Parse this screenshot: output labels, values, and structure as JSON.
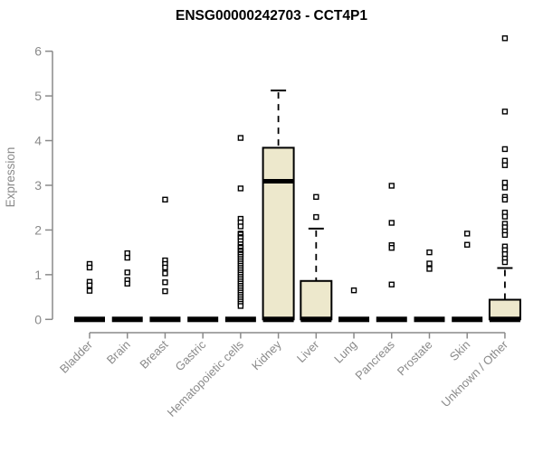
{
  "title": "ENSG00000242703 - CCT4P1",
  "chart_data": {
    "type": "boxplot",
    "title": "ENSG00000242703 - CCT4P1",
    "xlabel": "",
    "ylabel": "Expression",
    "ylim": [
      0,
      6.3
    ],
    "yticks": [
      0,
      1,
      2,
      3,
      4,
      5,
      6
    ],
    "grid": false,
    "legend": "none",
    "colors": {
      "box_fill": "#ede8cc",
      "box_border": "#000000",
      "outlier": "#000000",
      "axis": "#8a8a8a",
      "tick_label": "#8a8a8a",
      "title": "#000000"
    },
    "categories": [
      "Bladder",
      "Brain",
      "Breast",
      "Gastric",
      "Hematopoietic cells",
      "Kidney",
      "Liver",
      "Lung",
      "Pancreas",
      "Prostate",
      "Skin",
      "Unknown / Other"
    ],
    "boxes": [
      {
        "category": "Bladder",
        "q1": 0,
        "median": 0,
        "q3": 0,
        "whisker_low": 0,
        "whisker_high": 0,
        "outliers": [
          1.24,
          1.16,
          0.84,
          0.76,
          0.64
        ]
      },
      {
        "category": "Brain",
        "q1": 0,
        "median": 0,
        "q3": 0,
        "whisker_low": 0,
        "whisker_high": 0,
        "outliers": [
          1.48,
          1.38,
          1.05,
          0.88,
          0.8
        ]
      },
      {
        "category": "Breast",
        "q1": 0,
        "median": 0,
        "q3": 0,
        "whisker_low": 0,
        "whisker_high": 0,
        "outliers": [
          2.68,
          1.32,
          1.24,
          1.16,
          1.03,
          0.83,
          0.63
        ]
      },
      {
        "category": "Gastric",
        "q1": 0,
        "median": 0,
        "q3": 0,
        "whisker_low": 0,
        "whisker_high": 0,
        "outliers": []
      },
      {
        "category": "Hematopoietic cells",
        "q1": 0,
        "median": 0,
        "q3": 0,
        "whisker_low": 0,
        "whisker_high": 0,
        "outliers": [
          4.06,
          2.93,
          2.25,
          2.17,
          2.08,
          1.92,
          1.9,
          1.84,
          1.82,
          1.75,
          1.68,
          1.62,
          1.6,
          1.54,
          1.52,
          1.47,
          1.45,
          1.4,
          1.35,
          1.3,
          1.25,
          1.2,
          1.15,
          1.1,
          1.05,
          1.0,
          0.95,
          0.9,
          0.85,
          0.8,
          0.75,
          0.7,
          0.65,
          0.6,
          0.55,
          0.5,
          0.45,
          0.4,
          0.35,
          0.3
        ]
      },
      {
        "category": "Kidney",
        "q1": 0,
        "median": 3.09,
        "q3": 3.84,
        "whisker_low": 0,
        "whisker_high": 5.12,
        "outliers": []
      },
      {
        "category": "Liver",
        "q1": 0,
        "median": 0,
        "q3": 0.86,
        "whisker_low": 0,
        "whisker_high": 2.03,
        "outliers": [
          2.74,
          2.29
        ]
      },
      {
        "category": "Lung",
        "q1": 0,
        "median": 0,
        "q3": 0,
        "whisker_low": 0,
        "whisker_high": 0,
        "outliers": [
          0.65
        ]
      },
      {
        "category": "Pancreas",
        "q1": 0,
        "median": 0,
        "q3": 0,
        "whisker_low": 0,
        "whisker_high": 0,
        "outliers": [
          2.99,
          2.16,
          1.66,
          1.6,
          0.78
        ]
      },
      {
        "category": "Prostate",
        "q1": 0,
        "median": 0,
        "q3": 0,
        "whisker_low": 0,
        "whisker_high": 0,
        "outliers": [
          1.5,
          1.25,
          1.13
        ]
      },
      {
        "category": "Skin",
        "q1": 0,
        "median": 0,
        "q3": 0,
        "whisker_low": 0,
        "whisker_high": 0,
        "outliers": [
          1.92,
          1.67
        ]
      },
      {
        "category": "Unknown / Other",
        "q1": 0,
        "median": 0,
        "q3": 0.44,
        "whisker_low": 0,
        "whisker_high": 1.15,
        "outliers": [
          6.29,
          4.65,
          3.81,
          3.55,
          3.45,
          3.06,
          2.95,
          2.74,
          2.68,
          2.39,
          2.3,
          2.14,
          2.06,
          1.97,
          1.89,
          1.63,
          1.55,
          1.46,
          1.36,
          1.28
        ]
      }
    ]
  }
}
